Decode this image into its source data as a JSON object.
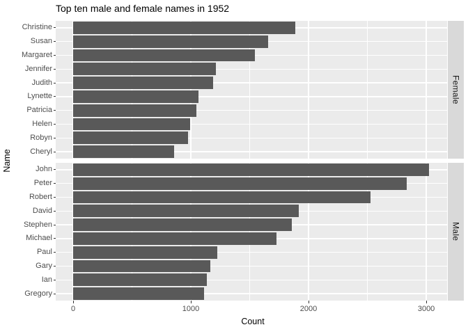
{
  "title": "Top ten male and female names in 1952",
  "chart_data": {
    "type": "bar",
    "orientation": "horizontal",
    "title": "Top ten male and female names in 1952",
    "xlabel": "Count",
    "ylabel": "Name",
    "x_ticks": [
      0,
      1000,
      2000,
      3000
    ],
    "x_tick_labels": [
      "0",
      "1000",
      "2000",
      "3000"
    ],
    "x_minor_ticks": [
      500,
      1500,
      2500
    ],
    "xlim": [
      -148,
      3177
    ],
    "grid": true,
    "legend_position": "none",
    "facet_axis": "right",
    "facets": [
      {
        "label": "Female",
        "categories": [
          "Christine",
          "Susan",
          "Margaret",
          "Jennifer",
          "Judith",
          "Lynette",
          "Patricia",
          "Helen",
          "Robyn",
          "Cheryl"
        ],
        "values": [
          1890,
          1655,
          1545,
          1215,
          1190,
          1065,
          1050,
          995,
          975,
          860
        ]
      },
      {
        "label": "Male",
        "categories": [
          "John",
          "Peter",
          "Robert",
          "David",
          "Stephen",
          "Michael",
          "Paul",
          "Gary",
          "Ian",
          "Gregory"
        ],
        "values": [
          3025,
          2835,
          2525,
          1915,
          1860,
          1730,
          1225,
          1165,
          1135,
          1110
        ]
      }
    ],
    "colors": {
      "bar": "#595959",
      "panel_background": "#ebebeb",
      "gridline": "#ffffff",
      "strip_background": "#d9d9d9",
      "strip_text": "#1a1a1a",
      "axis_text": "#4d4d4d",
      "axis_ticks": "#333333",
      "title_text": "#000000",
      "plot_background": "#ffffff"
    }
  }
}
